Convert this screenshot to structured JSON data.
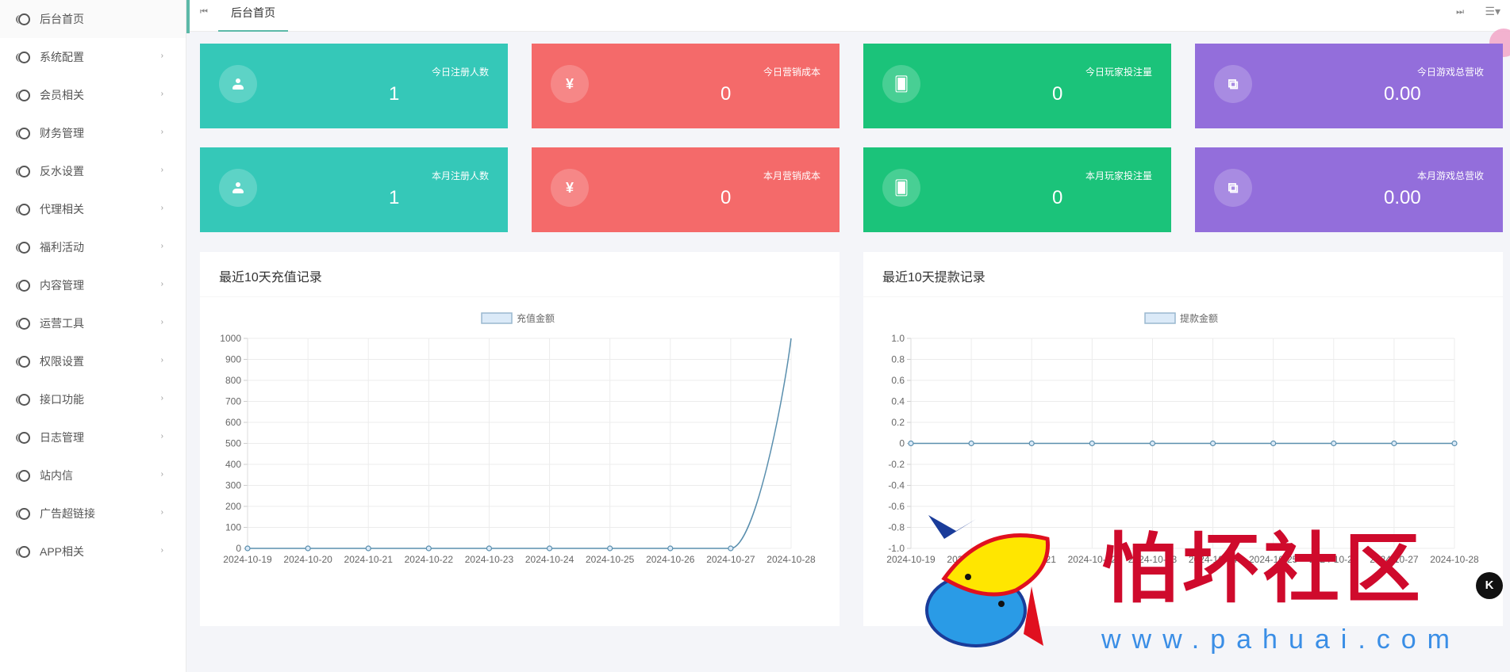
{
  "sidebar": {
    "items": [
      {
        "label": "后台首页",
        "has_arrow": false
      },
      {
        "label": "系统配置",
        "has_arrow": true
      },
      {
        "label": "会员相关",
        "has_arrow": true
      },
      {
        "label": "财务管理",
        "has_arrow": true
      },
      {
        "label": "反水设置",
        "has_arrow": true
      },
      {
        "label": "代理相关",
        "has_arrow": true
      },
      {
        "label": "福利活动",
        "has_arrow": true
      },
      {
        "label": "内容管理",
        "has_arrow": true
      },
      {
        "label": "运营工具",
        "has_arrow": true
      },
      {
        "label": "权限设置",
        "has_arrow": true
      },
      {
        "label": "接口功能",
        "has_arrow": true
      },
      {
        "label": "日志管理",
        "has_arrow": true
      },
      {
        "label": "站内信",
        "has_arrow": true
      },
      {
        "label": "广告超链接",
        "has_arrow": true
      },
      {
        "label": "APP相关",
        "has_arrow": true
      }
    ],
    "arrow_glyph": "›"
  },
  "topbar": {
    "prev_glyph": "⏮",
    "next_glyph": "⏭",
    "menu_glyph": "☰▾",
    "tabs": [
      {
        "label": "后台首页",
        "active": true
      }
    ],
    "accent_color": "#5cb9a8"
  },
  "stats": {
    "today": [
      {
        "label": "今日注册人数",
        "value": "1",
        "icon": "user-icon",
        "color": "#35c8b8"
      },
      {
        "label": "今日营销成本",
        "value": "0",
        "icon": "yen-icon",
        "glyph": "¥",
        "color": "#f46a6a"
      },
      {
        "label": "今日玩家投注量",
        "value": "0",
        "icon": "cards-icon",
        "glyph": "🂠",
        "color": "#1bc37a"
      },
      {
        "label": "今日游戏总营收",
        "value": "0.00",
        "icon": "money-icon",
        "glyph": "⧉",
        "color": "#936edb"
      }
    ],
    "month": [
      {
        "label": "本月注册人数",
        "value": "1",
        "icon": "user-icon",
        "color": "#35c8b8"
      },
      {
        "label": "本月营销成本",
        "value": "0",
        "icon": "yen-icon",
        "glyph": "¥",
        "color": "#f46a6a"
      },
      {
        "label": "本月玩家投注量",
        "value": "0",
        "icon": "cards-icon",
        "glyph": "🂠",
        "color": "#1bc37a"
      },
      {
        "label": "本月游戏总营收",
        "value": "0.00",
        "icon": "money-icon",
        "glyph": "⧉",
        "color": "#936edb"
      }
    ]
  },
  "charts": {
    "recharge_title": "最近10天充值记录",
    "withdraw_title": "最近10天提款记录"
  },
  "chart_data": [
    {
      "type": "line",
      "title": "最近10天充值记录",
      "legend": [
        "充值金额"
      ],
      "legend_position": "top",
      "categories": [
        "2024-10-19",
        "2024-10-20",
        "2024-10-21",
        "2024-10-22",
        "2024-10-23",
        "2024-10-24",
        "2024-10-25",
        "2024-10-26",
        "2024-10-27",
        "2024-10-28"
      ],
      "series": [
        {
          "name": "充值金额",
          "values": [
            0,
            0,
            0,
            0,
            0,
            0,
            0,
            0,
            0,
            1000
          ]
        }
      ],
      "yticks": [
        0,
        100,
        200,
        300,
        400,
        500,
        600,
        700,
        800,
        900,
        1000
      ],
      "ylim": [
        0,
        1000
      ],
      "grid": true,
      "line_color": "#5a8fae",
      "fill_color": "#dbeaf8"
    },
    {
      "type": "line",
      "title": "最近10天提款记录",
      "legend": [
        "提款金额"
      ],
      "legend_position": "top",
      "categories": [
        "2024-10-19",
        "2024-10-20",
        "2024-10-21",
        "2024-10-22",
        "2024-10-23",
        "2024-10-24",
        "2024-10-25",
        "2024-10-26",
        "2024-10-27",
        "2024-10-28"
      ],
      "series": [
        {
          "name": "提款金额",
          "values": [
            0,
            0,
            0,
            0,
            0,
            0,
            0,
            0,
            0,
            0
          ]
        }
      ],
      "yticks": [
        -1.0,
        -0.8,
        -0.6,
        -0.4,
        -0.2,
        0,
        0.2,
        0.4,
        0.6,
        0.8,
        1.0
      ],
      "ylim": [
        -1.0,
        1.0
      ],
      "grid": true,
      "line_color": "#5a8fae",
      "fill_color": "#dbeaf8"
    }
  ],
  "watermark": {
    "text": "怕坏社区",
    "url": "www.pahuai.com",
    "badge": "K"
  }
}
